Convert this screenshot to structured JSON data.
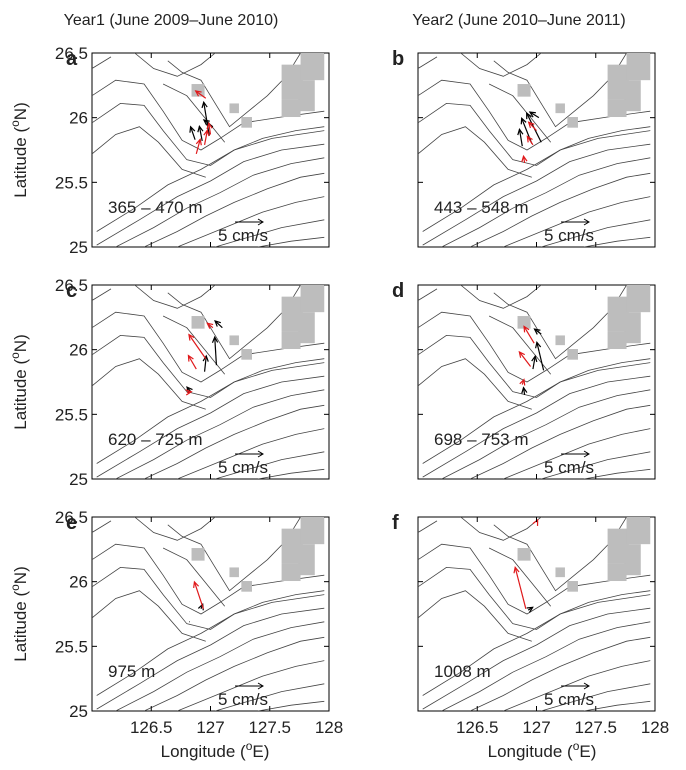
{
  "chart_data": {
    "type": "quiver",
    "column_titles": [
      "Year1 (June 2009–June 2010)",
      "Year2 (June 2010–June 2011)"
    ],
    "xlabel": "Longitude (oE)",
    "ylabel": "Latitude (oN)",
    "xlim": [
      126.0,
      128.0
    ],
    "ylim": [
      25.0,
      26.5
    ],
    "xticks": [
      "126.5",
      "127",
      "127.5",
      "128"
    ],
    "yticks": [
      "25",
      "25.5",
      "26",
      "26.5"
    ],
    "scale_arrow": {
      "label": "5 cm/s",
      "speed": 5
    },
    "colors": {
      "year_a": "#000000",
      "year_b": "#e0191b",
      "land": "#bdbdbd",
      "contour": "#444444"
    },
    "panels": [
      {
        "label": "a",
        "depth": "365 – 470 m",
        "arrows": [
          {
            "x": 126.87,
            "y": 25.83,
            "u": -0.8,
            "v": 2.3,
            "color": "#000000"
          },
          {
            "x": 126.93,
            "y": 25.82,
            "u": -0.5,
            "v": 2.6,
            "color": "#000000"
          },
          {
            "x": 126.99,
            "y": 25.86,
            "u": -1.0,
            "v": 6.0,
            "color": "#000000"
          },
          {
            "x": 127.02,
            "y": 25.93,
            "u": -1.6,
            "v": 1.2,
            "color": "#000000"
          },
          {
            "x": 126.88,
            "y": 25.72,
            "u": 0.7,
            "v": 2.6,
            "color": "#e0191b"
          },
          {
            "x": 126.95,
            "y": 25.79,
            "u": 0.5,
            "v": 2.6,
            "color": "#e0191b"
          },
          {
            "x": 127.0,
            "y": 25.87,
            "u": -0.3,
            "v": 2.0,
            "color": "#e0191b"
          },
          {
            "x": 126.96,
            "y": 26.15,
            "u": -1.8,
            "v": 1.3,
            "color": "#e0191b"
          }
        ]
      },
      {
        "label": "b",
        "depth": "443 – 548 m",
        "arrows": [
          {
            "x": 126.88,
            "y": 25.78,
            "u": -0.5,
            "v": 3.0,
            "color": "#000000"
          },
          {
            "x": 126.96,
            "y": 25.8,
            "u": -1.8,
            "v": 4.5,
            "color": "#000000"
          },
          {
            "x": 127.04,
            "y": 25.81,
            "u": -2.6,
            "v": 5.2,
            "color": "#000000"
          },
          {
            "x": 127.02,
            "y": 26.0,
            "u": -1.6,
            "v": 1.0,
            "color": "#000000"
          },
          {
            "x": 126.9,
            "y": 25.65,
            "u": -0.2,
            "v": 1.2,
            "color": "#e0191b"
          },
          {
            "x": 126.97,
            "y": 25.79,
            "u": -1.0,
            "v": 1.5,
            "color": "#e0191b"
          },
          {
            "x": 127.0,
            "y": 25.9,
            "u": -1.4,
            "v": 1.5,
            "color": "#e0191b"
          }
        ]
      },
      {
        "label": "c",
        "depth": "620 – 725 m",
        "arrows": [
          {
            "x": 126.83,
            "y": 25.68,
            "u": -0.6,
            "v": 0.7,
            "color": "#000000"
          },
          {
            "x": 126.95,
            "y": 25.83,
            "u": 0.3,
            "v": 2.8,
            "color": "#000000"
          },
          {
            "x": 127.05,
            "y": 25.88,
            "u": -0.3,
            "v": 5.0,
            "color": "#000000"
          },
          {
            "x": 127.1,
            "y": 26.17,
            "u": -1.3,
            "v": 1.2,
            "color": "#000000"
          },
          {
            "x": 126.8,
            "y": 25.67,
            "u": 0.8,
            "v": 0.1,
            "color": "#e0191b"
          },
          {
            "x": 126.88,
            "y": 25.85,
            "u": -1.4,
            "v": 2.4,
            "color": "#e0191b"
          },
          {
            "x": 126.96,
            "y": 25.93,
            "u": -3.0,
            "v": 4.3,
            "color": "#e0191b"
          },
          {
            "x": 127.02,
            "y": 26.17,
            "u": -1.0,
            "v": 0.8,
            "color": "#e0191b"
          }
        ]
      },
      {
        "label": "d",
        "depth": "698 – 753 m",
        "arrows": [
          {
            "x": 126.9,
            "y": 25.65,
            "u": -0.2,
            "v": 1.3,
            "color": "#000000"
          },
          {
            "x": 126.97,
            "y": 25.85,
            "u": 0.4,
            "v": 2.3,
            "color": "#000000"
          },
          {
            "x": 127.06,
            "y": 25.84,
            "u": -1.2,
            "v": 5.0,
            "color": "#000000"
          },
          {
            "x": 127.04,
            "y": 26.12,
            "u": -1.2,
            "v": 0.9,
            "color": "#000000"
          },
          {
            "x": 126.88,
            "y": 25.73,
            "u": 0.3,
            "v": 0.9,
            "color": "#e0191b"
          },
          {
            "x": 126.95,
            "y": 25.87,
            "u": -2.0,
            "v": 2.6,
            "color": "#e0191b"
          },
          {
            "x": 126.98,
            "y": 26.05,
            "u": -1.8,
            "v": 3.0,
            "color": "#e0191b"
          }
        ]
      },
      {
        "label": "e",
        "depth": "975 m",
        "arrows": [
          {
            "x": 126.92,
            "y": 25.79,
            "u": 0.3,
            "v": 0.8,
            "color": "#000000"
          },
          {
            "x": 126.82,
            "y": 25.69,
            "u": 0.1,
            "v": 0.0,
            "color": "#000000"
          },
          {
            "x": 126.94,
            "y": 25.79,
            "u": -1.6,
            "v": 4.8,
            "color": "#e0191b"
          }
        ]
      },
      {
        "label": "f",
        "depth": "1008 m",
        "arrows": [
          {
            "x": 126.93,
            "y": 25.78,
            "u": 0.8,
            "v": 0.5,
            "color": "#000000"
          },
          {
            "x": 126.91,
            "y": 25.79,
            "u": -1.9,
            "v": 7.4,
            "color": "#e0191b"
          },
          {
            "x": 127.0,
            "y": 26.46,
            "u": 0.2,
            "v": 0.4,
            "color": "#e0191b"
          }
        ]
      }
    ]
  }
}
